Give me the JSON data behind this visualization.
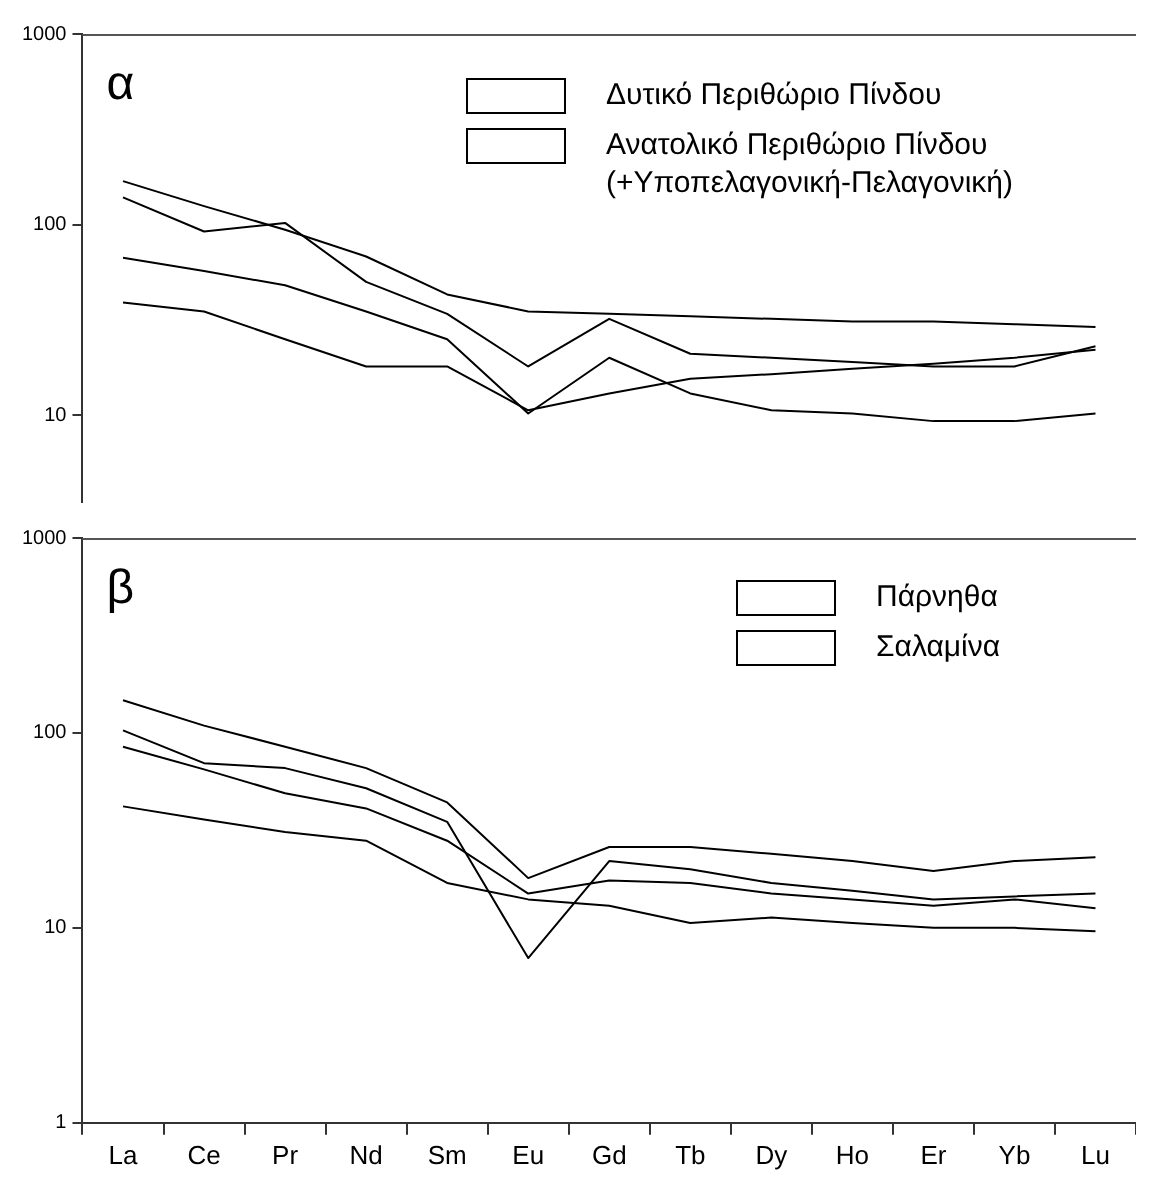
{
  "chart_data": [
    {
      "type": "line",
      "title": "α",
      "categories": [
        null,
        null,
        null,
        null,
        null,
        null,
        null,
        null,
        null,
        null,
        null,
        null,
        null
      ],
      "log": "y",
      "ylim": [
        3.5,
        1000
      ],
      "yticks": [
        10,
        100,
        1000
      ],
      "tick_labels": "y",
      "grid": false,
      "legend": "top right",
      "marker": "none",
      "series": [
        {
          "name": "Δυτικό Περιθώριο Πίνδου",
          "color": "#000000",
          "values": [
            169,
            125,
            94,
            68,
            43,
            35,
            34,
            33,
            32,
            31,
            31,
            30,
            29
          ]
        },
        {
          "color": "#000000",
          "values": [
            39,
            35,
            25,
            18,
            18,
            10.6,
            13,
            15.5,
            16.4,
            17.5,
            18.6,
            20,
            22
          ]
        },
        {
          "name": "Ανατολικό Περιθώριο Πίνδου (+Υποπελαγονική-Πελαγονική)",
          "color": "#000000",
          "values": [
            139,
            92,
            102,
            50,
            34,
            18,
            32,
            21,
            20,
            19,
            18,
            18,
            23
          ]
        },
        {
          "color": "#000000",
          "values": [
            67,
            57,
            48,
            35,
            25,
            10.2,
            20,
            13,
            10.6,
            10.2,
            9.3,
            9.3,
            10.2
          ]
        }
      ]
    },
    {
      "type": "line",
      "title": "β",
      "categories": [
        "La",
        "Ce",
        "Pr",
        "Nd",
        "Sm",
        "Eu",
        "Gd",
        "Tb",
        "Dy",
        "Ho",
        "Er",
        "Yb",
        "Lu"
      ],
      "log": "y",
      "ylim": [
        1,
        1000
      ],
      "yticks": [
        1,
        10,
        100,
        1000
      ],
      "grid": false,
      "legend": "top right",
      "marker": "none",
      "series": [
        {
          "name": "Πάρνηθα",
          "color": "#000000",
          "values": [
            147,
            109,
            85,
            66,
            44,
            18,
            26,
            26,
            24,
            22,
            19.6,
            22,
            23
          ]
        },
        {
          "color": "#000000",
          "values": [
            103,
            70,
            66,
            52,
            35,
            7,
            22,
            20,
            17,
            15.5,
            14,
            14.5,
            15
          ]
        },
        {
          "name": "Σαλαμίνα",
          "color": "#000000",
          "values": [
            85,
            65,
            49,
            41,
            28,
            15,
            17.5,
            17,
            15,
            14,
            13,
            14,
            12.6
          ]
        },
        {
          "color": "#000000",
          "values": [
            42,
            36,
            31,
            28,
            17,
            14,
            13,
            10.6,
            11.3,
            10.6,
            10,
            10,
            9.6
          ]
        }
      ]
    }
  ]
}
